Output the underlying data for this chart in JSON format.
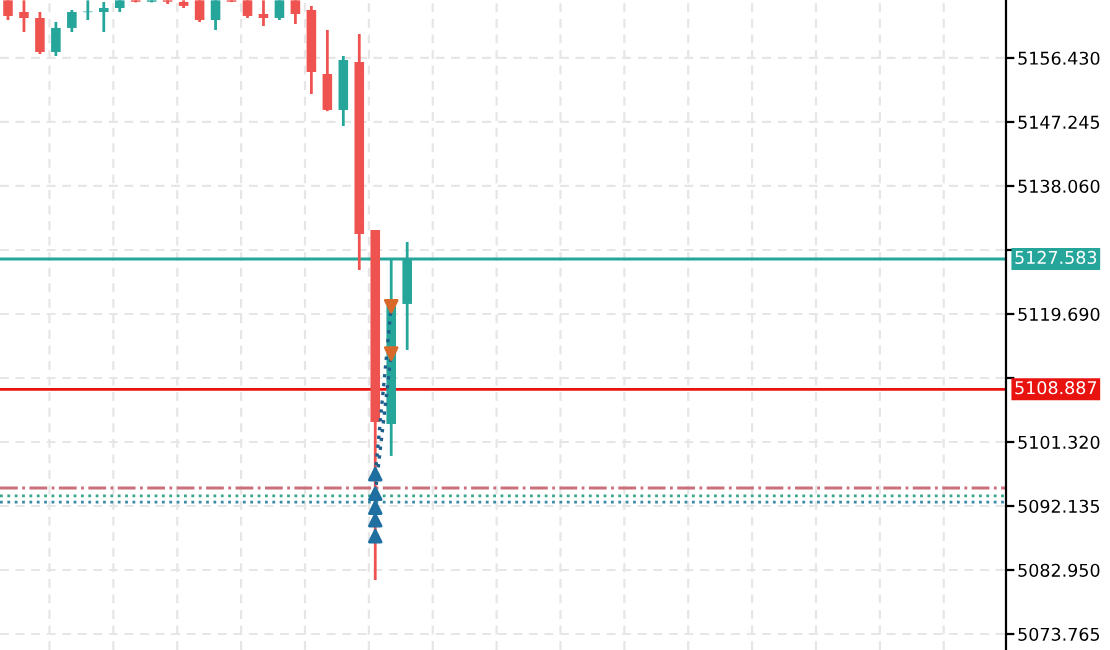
{
  "chart_data": {
    "type": "candlestick",
    "categories": [
      null,
      null,
      null,
      null,
      null,
      null,
      null,
      null,
      null,
      null,
      null,
      null,
      null,
      null,
      null,
      null,
      null,
      null,
      null,
      null,
      null,
      null,
      null,
      null,
      null,
      null,
      null,
      null,
      null,
      null,
      null,
      null,
      null,
      null,
      null,
      null,
      null,
      null,
      null,
      null,
      null,
      null,
      null,
      null,
      null,
      null,
      null,
      null,
      null,
      null,
      null,
      null,
      null,
      null,
      null,
      null,
      null,
      null,
      null,
      null,
      null,
      null,
      null
    ],
    "ohlc": [
      [
        5164.7,
        5164.7,
        5161.88,
        5162.46
      ],
      [
        5163.03,
        5164.7,
        5160.16,
        5162.17
      ],
      [
        5162.17,
        5163.03,
        5157.0,
        5157.29
      ],
      [
        5157.29,
        5161.6,
        5156.72,
        5160.74
      ],
      [
        5160.74,
        5163.32,
        5160.16,
        5163.03
      ],
      [
        5163.0,
        5164.7,
        5161.88,
        5163.1
      ],
      [
        5163.03,
        5164.47,
        5160.16,
        5163.6
      ],
      [
        5163.6,
        5164.7,
        5163.03,
        5164.7
      ],
      [
        5164.7,
        5164.7,
        5164.4,
        5164.5
      ],
      [
        5164.5,
        5164.7,
        5164.4,
        5164.7
      ],
      [
        5164.7,
        5164.7,
        5164.18,
        5164.5
      ],
      [
        5164.47,
        5164.7,
        5163.6,
        5163.9
      ],
      [
        5164.7,
        5164.7,
        5161.6,
        5161.88
      ],
      [
        5161.88,
        5164.7,
        5160.45,
        5164.7
      ],
      [
        5164.7,
        5164.7,
        5164.45,
        5164.5
      ],
      [
        5164.7,
        5164.7,
        5162.17,
        5162.46
      ],
      [
        5162.74,
        5164.7,
        5161.02,
        5162.17
      ],
      [
        5162.17,
        5164.7,
        5161.88,
        5164.7
      ],
      [
        5164.7,
        5164.7,
        5161.31,
        5162.74
      ],
      [
        5163.32,
        5163.89,
        5151.26,
        5154.42
      ],
      [
        5154.13,
        5160.45,
        5148.8,
        5148.97
      ],
      [
        5148.97,
        5156.72,
        5146.67,
        5156.14
      ],
      [
        5155.86,
        5159.87,
        5126.0,
        5131.17
      ],
      [
        5131.75,
        5131.75,
        5081.52,
        5104.2
      ],
      [
        5103.91,
        5127.44,
        5099.32,
        5120.84
      ],
      [
        5121.13,
        5130.03,
        5114.53,
        5127.44
      ],
      null,
      null,
      null,
      null,
      null,
      null,
      null,
      null,
      null,
      null,
      null,
      null,
      null,
      null,
      null,
      null,
      null,
      null,
      null,
      null,
      null,
      null,
      null,
      null,
      null,
      null,
      null,
      null,
      null,
      null,
      null,
      null,
      null,
      null,
      null,
      null,
      null
    ],
    "colors": [
      "#ef5350",
      "#ef5350",
      "#ef5350",
      "#26a69a",
      "#26a69a",
      "#26a69a",
      "#26a69a",
      "#26a69a",
      "#ef5350",
      "#26a69a",
      "#ef5350",
      "#ef5350",
      "#ef5350",
      "#26a69a",
      "#ef5350",
      "#ef5350",
      "#ef5350",
      "#26a69a",
      "#ef5350",
      "#ef5350",
      "#ef5350",
      "#26a69a",
      "#ef5350",
      "#ef5350",
      "#26a69a",
      "#26a69a",
      null,
      null,
      null,
      null,
      null,
      null,
      null,
      null,
      null,
      null,
      null,
      null,
      null,
      null,
      null,
      null,
      null,
      null,
      null,
      null,
      null,
      null,
      null,
      null,
      null,
      null,
      null,
      null,
      null,
      null,
      null,
      null,
      null,
      null,
      null,
      null,
      null
    ],
    "series": [
      {
        "type": "line",
        "values": [
          null,
          null,
          null,
          null,
          null,
          null,
          null,
          null,
          null,
          null,
          null,
          null,
          null,
          null,
          null,
          null,
          null,
          null,
          null,
          null,
          null,
          null,
          null,
          5096.7,
          5120.8,
          null,
          null,
          null,
          null,
          null,
          null,
          null,
          null,
          null,
          null,
          null,
          null,
          null,
          null,
          null,
          null,
          null,
          null,
          null,
          null,
          null,
          null,
          null,
          null,
          null,
          null,
          null,
          null,
          null,
          null,
          null,
          null,
          null,
          null,
          null,
          null,
          null,
          null
        ],
        "color": "#1f5f8b",
        "line_style": "dotted"
      },
      {
        "type": "line",
        "values": [
          null,
          null,
          null,
          null,
          null,
          null,
          null,
          null,
          null,
          null,
          null,
          null,
          null,
          null,
          null,
          null,
          null,
          null,
          null,
          null,
          null,
          null,
          null,
          5093.9,
          5114.0,
          null,
          null,
          null,
          null,
          null,
          null,
          null,
          null,
          null,
          null,
          null,
          null,
          null,
          null,
          null,
          null,
          null,
          null,
          null,
          null,
          null,
          null,
          null,
          null,
          null,
          null,
          null,
          null,
          null,
          null,
          null,
          null,
          null,
          null,
          null,
          null,
          null,
          null
        ],
        "color": "#1f5f8b",
        "line_style": "dotted"
      },
      {
        "type": "scatter",
        "values": [
          null,
          null,
          null,
          null,
          null,
          null,
          null,
          null,
          null,
          null,
          null,
          null,
          null,
          null,
          null,
          null,
          null,
          null,
          null,
          null,
          null,
          null,
          null,
          5096.7,
          null,
          null,
          null,
          null,
          null,
          null,
          null,
          null,
          null,
          null,
          null,
          null,
          null,
          null,
          null,
          null,
          null,
          null,
          null,
          null,
          null,
          null,
          null,
          null,
          null,
          null,
          null,
          null,
          null,
          null,
          null,
          null,
          null,
          null,
          null,
          null,
          null,
          null,
          null
        ],
        "color": "#1f6fa0",
        "marker": "triangle"
      },
      {
        "type": "scatter",
        "values": [
          null,
          null,
          null,
          null,
          null,
          null,
          null,
          null,
          null,
          null,
          null,
          null,
          null,
          null,
          null,
          null,
          null,
          null,
          null,
          null,
          null,
          null,
          null,
          5093.9,
          null,
          null,
          null,
          null,
          null,
          null,
          null,
          null,
          null,
          null,
          null,
          null,
          null,
          null,
          null,
          null,
          null,
          null,
          null,
          null,
          null,
          null,
          null,
          null,
          null,
          null,
          null,
          null,
          null,
          null,
          null,
          null,
          null,
          null,
          null,
          null,
          null,
          null,
          null
        ],
        "color": "#1f6fa0",
        "marker": "triangle"
      },
      {
        "type": "scatter",
        "values": [
          null,
          null,
          null,
          null,
          null,
          null,
          null,
          null,
          null,
          null,
          null,
          null,
          null,
          null,
          null,
          null,
          null,
          null,
          null,
          null,
          null,
          null,
          null,
          5091.9,
          null,
          null,
          null,
          null,
          null,
          null,
          null,
          null,
          null,
          null,
          null,
          null,
          null,
          null,
          null,
          null,
          null,
          null,
          null,
          null,
          null,
          null,
          null,
          null,
          null,
          null,
          null,
          null,
          null,
          null,
          null,
          null,
          null,
          null,
          null,
          null,
          null,
          null,
          null
        ],
        "color": "#1f6fa0",
        "marker": "triangle"
      },
      {
        "type": "scatter",
        "values": [
          null,
          null,
          null,
          null,
          null,
          null,
          null,
          null,
          null,
          null,
          null,
          null,
          null,
          null,
          null,
          null,
          null,
          null,
          null,
          null,
          null,
          null,
          null,
          5090.1,
          null,
          null,
          null,
          null,
          null,
          null,
          null,
          null,
          null,
          null,
          null,
          null,
          null,
          null,
          null,
          null,
          null,
          null,
          null,
          null,
          null,
          null,
          null,
          null,
          null,
          null,
          null,
          null,
          null,
          null,
          null,
          null,
          null,
          null,
          null,
          null,
          null,
          null,
          null
        ],
        "color": "#1f6fa0",
        "marker": "triangle"
      },
      {
        "type": "scatter",
        "values": [
          null,
          null,
          null,
          null,
          null,
          null,
          null,
          null,
          null,
          null,
          null,
          null,
          null,
          null,
          null,
          null,
          null,
          null,
          null,
          null,
          null,
          null,
          null,
          5087.8,
          null,
          null,
          null,
          null,
          null,
          null,
          null,
          null,
          null,
          null,
          null,
          null,
          null,
          null,
          null,
          null,
          null,
          null,
          null,
          null,
          null,
          null,
          null,
          null,
          null,
          null,
          null,
          null,
          null,
          null,
          null,
          null,
          null,
          null,
          null,
          null,
          null,
          null,
          null
        ],
        "color": "#1f6fa0",
        "marker": "triangle"
      },
      {
        "type": "scatter",
        "values": [
          null,
          null,
          null,
          null,
          null,
          null,
          null,
          null,
          null,
          null,
          null,
          null,
          null,
          null,
          null,
          null,
          null,
          null,
          null,
          null,
          null,
          null,
          null,
          null,
          5120.8,
          null,
          null,
          null,
          null,
          null,
          null,
          null,
          null,
          null,
          null,
          null,
          null,
          null,
          null,
          null,
          null,
          null,
          null,
          null,
          null,
          null,
          null,
          null,
          null,
          null,
          null,
          null,
          null,
          null,
          null,
          null,
          null,
          null,
          null,
          null,
          null,
          null,
          null
        ],
        "color": "#d9692b",
        "marker": "triangle_down"
      },
      {
        "type": "scatter",
        "values": [
          null,
          null,
          null,
          null,
          null,
          null,
          null,
          null,
          null,
          null,
          null,
          null,
          null,
          null,
          null,
          null,
          null,
          null,
          null,
          null,
          null,
          null,
          null,
          null,
          5114.0,
          null,
          null,
          null,
          null,
          null,
          null,
          null,
          null,
          null,
          null,
          null,
          null,
          null,
          null,
          null,
          null,
          null,
          null,
          null,
          null,
          null,
          null,
          null,
          null,
          null,
          null,
          null,
          null,
          null,
          null,
          null,
          null,
          null,
          null,
          null,
          null,
          null,
          null
        ],
        "color": "#d9692b",
        "marker": "triangle_down"
      }
    ],
    "ylim": [
      5071.47,
      5164.75
    ],
    "yticks": [
      {
        "value": 5073.765,
        "label": "5073.765"
      },
      {
        "value": 5082.95,
        "label": "5082.950"
      },
      {
        "value": 5092.135,
        "label": "5092.135"
      },
      {
        "value": 5101.32,
        "label": "5101.320"
      },
      {
        "value": 5110.505,
        "label": null
      },
      {
        "value": 5119.69,
        "label": "5119.690"
      },
      {
        "value": 5128.875,
        "label": null
      },
      {
        "value": 5138.06,
        "label": "5138.060"
      },
      {
        "value": 5147.245,
        "label": "5147.245"
      },
      {
        "value": 5156.43,
        "label": "5156.430"
      }
    ],
    "ref_lines": [
      {
        "axis": "y",
        "value": 5127.583,
        "label": "5127.583",
        "color": "#26a69a",
        "line_style": "solid"
      },
      {
        "axis": "y",
        "value": 5108.887,
        "label": "5108.887",
        "color": "#e8120f",
        "line_style": "solid"
      },
      {
        "axis": "y",
        "value": 5094.72,
        "label": null,
        "color": "#c9707a",
        "line_style": "dashdot"
      },
      {
        "axis": "y",
        "value": 5093.6,
        "label": null,
        "color": "#3aa58a",
        "line_style": "dotted"
      },
      {
        "axis": "y",
        "value": 5092.7,
        "label": null,
        "color": "#3a8aa5",
        "line_style": "dotted"
      }
    ],
    "grid": true,
    "tick_labels": "y"
  }
}
